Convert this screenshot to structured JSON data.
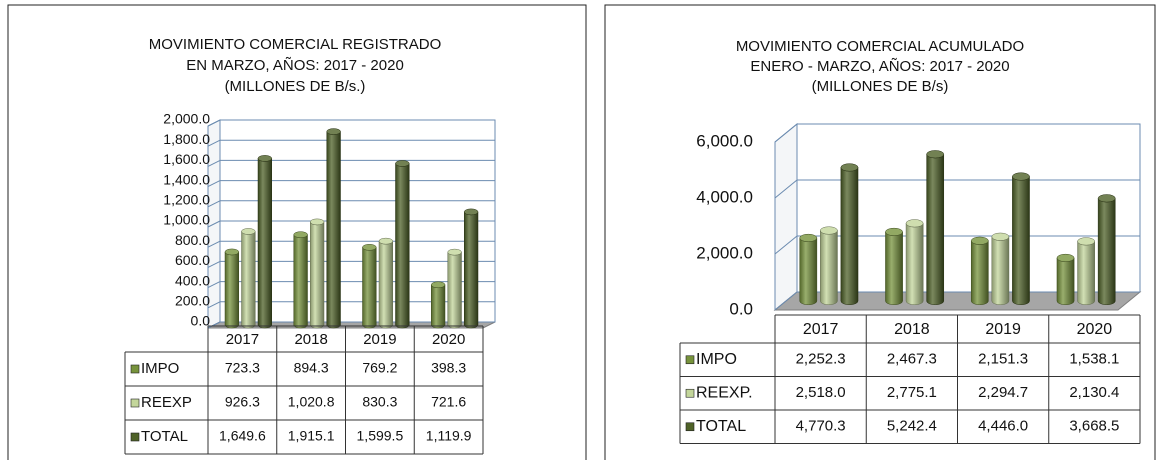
{
  "chart_data": [
    {
      "type": "bar3d",
      "title": [
        "MOVIMIENTO  COMERCIAL  REGISTRADO",
        "EN  MARZO,  AÑOS:  2017  -  2020",
        "(MILLONES  DE  B/s.)"
      ],
      "categories": [
        "2017",
        "2018",
        "2019",
        "2020"
      ],
      "series": [
        {
          "name": "IMPO",
          "color": "#77933c",
          "values": [
            723.3,
            894.3,
            769.2,
            398.3
          ],
          "value_labels": [
            "723.3",
            "894.3",
            "769.2",
            "398.3"
          ]
        },
        {
          "name": "REEXP",
          "color": "#c3d69b",
          "values": [
            926.3,
            1020.8,
            830.3,
            721.6
          ],
          "value_labels": [
            "926.3",
            "1,020.8",
            "830.3",
            "721.6"
          ]
        },
        {
          "name": "TOTAL",
          "color": "#4f6228",
          "values": [
            1649.6,
            1915.1,
            1599.5,
            1119.9
          ],
          "value_labels": [
            "1,649.6",
            "1,915.1",
            "1,599.5",
            "1,119.9"
          ]
        }
      ],
      "ylim": [
        0,
        2000
      ],
      "yticks": [
        {
          "value": 0,
          "label": "0.0"
        },
        {
          "value": 200,
          "label": "200.0"
        },
        {
          "value": 400,
          "label": "400.0"
        },
        {
          "value": 600,
          "label": "600.0"
        },
        {
          "value": 800,
          "label": "800.0"
        },
        {
          "value": 1000,
          "label": "1,000.0"
        },
        {
          "value": 1200,
          "label": "1,200.0"
        },
        {
          "value": 1400,
          "label": "1,400.0"
        },
        {
          "value": 1600,
          "label": "1,600.0"
        },
        {
          "value": 1800,
          "label": "1,800.0"
        },
        {
          "value": 2000,
          "label": "2,000.0"
        }
      ],
      "grid": true
    },
    {
      "type": "bar3d",
      "title": [
        "MOVIMIENTO  COMERCIAL  ACUMULADO",
        "ENERO  -  MARZO,  AÑOS:  2017  -  2020",
        "(MILLONES  DE  B/s)"
      ],
      "categories": [
        "2017",
        "2018",
        "2019",
        "2020"
      ],
      "series": [
        {
          "name": "IMPO",
          "color": "#77933c",
          "values": [
            2252.3,
            2467.3,
            2151.3,
            1538.1
          ],
          "value_labels": [
            "2,252.3",
            "2,467.3",
            "2,151.3",
            "1,538.1"
          ]
        },
        {
          "name": "REEXP.",
          "color": "#c3d69b",
          "values": [
            2518.0,
            2775.1,
            2294.7,
            2130.4
          ],
          "value_labels": [
            "2,518.0",
            "2,775.1",
            "2,294.7",
            "2,130.4"
          ]
        },
        {
          "name": "TOTAL",
          "color": "#4f6228",
          "values": [
            4770.3,
            5242.4,
            4446.0,
            3668.5
          ],
          "value_labels": [
            "4,770.3",
            "5,242.4",
            "4,446.0",
            "3,668.5"
          ]
        }
      ],
      "ylim": [
        0,
        6000
      ],
      "yticks": [
        {
          "value": 0,
          "label": "0.0"
        },
        {
          "value": 2000,
          "label": "2,000.0"
        },
        {
          "value": 4000,
          "label": "4,000.0"
        },
        {
          "value": 6000,
          "label": "6,000.0"
        }
      ],
      "grid": true
    }
  ]
}
